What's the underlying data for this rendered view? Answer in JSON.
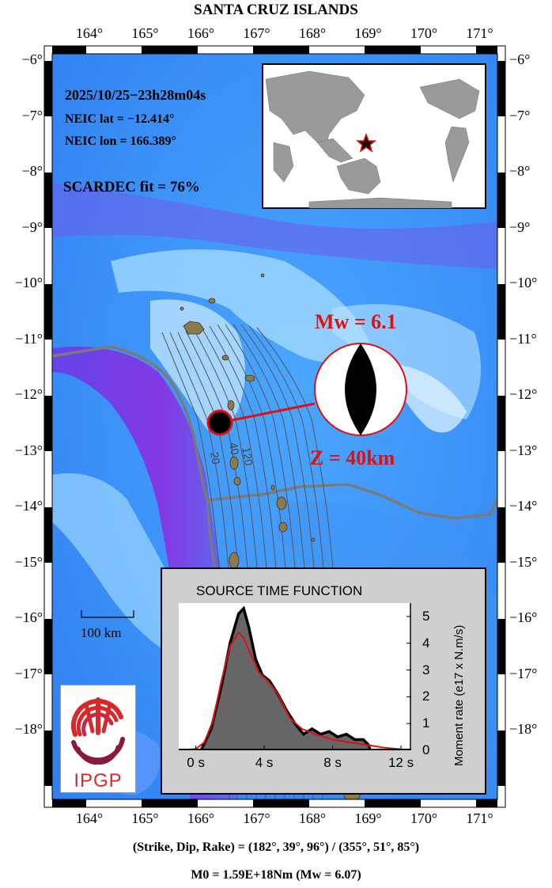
{
  "title": "SANTA CRUZ ISLANDS",
  "lon_ticks": [
    "164°",
    "165°",
    "166°",
    "167°",
    "168°",
    "169°",
    "170°",
    "171°"
  ],
  "lat_ticks": [
    "−6°",
    "−7°",
    "−8°",
    "−9°",
    "−10°",
    "−11°",
    "−12°",
    "−13°",
    "−14°",
    "−15°",
    "−16°",
    "−17°",
    "−18°"
  ],
  "event": {
    "datetime": "2025/10/25−23h28m04s",
    "lat": "NEIC lat  = −12.414°",
    "lon": "NEIC lon = 166.389°",
    "fit": "SCARDEC fit = 76%",
    "mw": "Mw = 6.1",
    "depth": "Z =  40km"
  },
  "contours": {
    "labels": [
      "20",
      "40",
      "120"
    ]
  },
  "scale_bar": "100 km",
  "logo": {
    "text": "IPGP"
  },
  "stf": {
    "title": "SOURCE TIME FUNCTION",
    "ylabel": "Moment rate (e17 x N.m/s)",
    "xticks": [
      "0 s",
      "4 s",
      "8 s",
      "12 s"
    ],
    "yticks": [
      "0",
      "1",
      "2",
      "3",
      "4",
      "5"
    ],
    "chart_data": {
      "type": "area",
      "x_unit": "s",
      "y_unit": "e17 x N.m/s",
      "xlim": [
        -1.0,
        12.6
      ],
      "ylim": [
        0,
        5.5
      ],
      "series": [
        {
          "style": "filled grey with black outline",
          "x": [
            0.3,
            0.9,
            1.5,
            2.0,
            2.5,
            2.8,
            3.1,
            3.5,
            3.9,
            4.3,
            4.8,
            5.3,
            5.8,
            6.3,
            6.8,
            7.3,
            7.8,
            8.3,
            8.8,
            9.3,
            9.8,
            10.1,
            10.2
          ],
          "y": [
            0.0,
            0.8,
            2.4,
            4.0,
            5.1,
            5.3,
            4.6,
            3.4,
            2.8,
            2.6,
            2.1,
            1.5,
            1.0,
            0.6,
            0.8,
            0.6,
            0.7,
            0.5,
            0.6,
            0.4,
            0.4,
            0.2,
            0.0
          ]
        },
        {
          "style": "red line",
          "x": [
            -1.0,
            0.0,
            0.5,
            1.0,
            1.5,
            2.0,
            2.5,
            2.8,
            3.2,
            3.7,
            4.2,
            4.8,
            5.5,
            6.2,
            7.0,
            8.0,
            9.0,
            10.0,
            11.0,
            12.6
          ],
          "y": [
            0.0,
            0.05,
            0.3,
            1.1,
            2.6,
            3.9,
            4.4,
            4.2,
            3.6,
            2.9,
            2.6,
            2.1,
            1.2,
            0.8,
            0.6,
            0.4,
            0.3,
            0.2,
            0.1,
            0.0
          ]
        }
      ]
    }
  },
  "footer": {
    "planes": "(Strike, Dip, Rake) = (182°, 39°, 96°) / (355°, 51°, 85°)",
    "moment": "M0 = 1.59E+18Nm  (Mw = 6.07)"
  },
  "colors": {
    "deep": "#7a1ee0",
    "ocean": "#2f8cf0",
    "shallow": "#8fd1ff",
    "land": "#8c7a4a",
    "beachball": "#000000",
    "accent": "#e01010"
  }
}
